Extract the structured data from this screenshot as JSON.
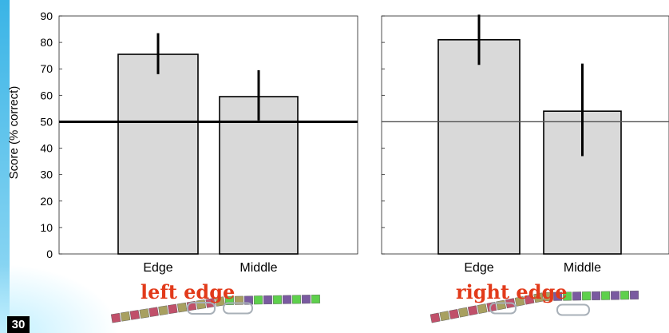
{
  "slide_number": "30",
  "colors": {
    "accent_strip": "#3ab4e6",
    "caption": "#e23a1a",
    "bar_fill": "#d9d9d9",
    "error_bar": "#000000",
    "chain_red": "#c0506a",
    "chain_olive": "#a8a060",
    "chain_purple": "#7a5aa0",
    "chain_green": "#5ed04c",
    "oval": "#a8b0b8"
  },
  "captions": {
    "left": "left edge",
    "right": "right edge"
  },
  "chart_data": [
    {
      "type": "bar",
      "categories": [
        "Edge",
        "Middle"
      ],
      "values": [
        75.5,
        59.5
      ],
      "error": [
        [
          68,
          83.5
        ],
        [
          50.5,
          69.5
        ]
      ],
      "ylabel": "Score (% correct)",
      "ylim": [
        0,
        90
      ],
      "yticks": [
        0,
        10,
        20,
        30,
        40,
        50,
        60,
        70,
        80,
        90
      ],
      "reference_line": 50,
      "reference_line_style": "thick",
      "grid": false
    },
    {
      "type": "bar",
      "categories": [
        "Edge",
        "Middle"
      ],
      "values": [
        81,
        54
      ],
      "error": [
        [
          71.5,
          90.5
        ],
        [
          37,
          72
        ]
      ],
      "ylabel": "",
      "ylim": [
        0,
        90
      ],
      "reference_line": 50,
      "reference_line_style": "thin",
      "grid": false
    }
  ],
  "chains": [
    {
      "name": "left-edge-chain",
      "tiles": [
        "red",
        "olive",
        "red",
        "olive",
        "red",
        "olive",
        "red",
        "olive",
        "red",
        "olive",
        "red",
        "olive",
        "green",
        "olive",
        "purple",
        "green",
        "purple",
        "green",
        "purple",
        "green",
        "purple",
        "green"
      ],
      "highlighted": [
        12,
        13,
        14,
        15,
        16,
        17,
        18
      ]
    },
    {
      "name": "right-edge-chain",
      "tiles": [
        "red",
        "olive",
        "red",
        "olive",
        "red",
        "olive",
        "red",
        "olive",
        "red",
        "olive",
        "red",
        "olive",
        "olive",
        "purple",
        "green",
        "purple",
        "green",
        "purple",
        "green",
        "purple",
        "green",
        "purple"
      ],
      "highlighted": [
        10,
        11,
        12,
        15,
        16,
        17,
        18
      ]
    }
  ]
}
